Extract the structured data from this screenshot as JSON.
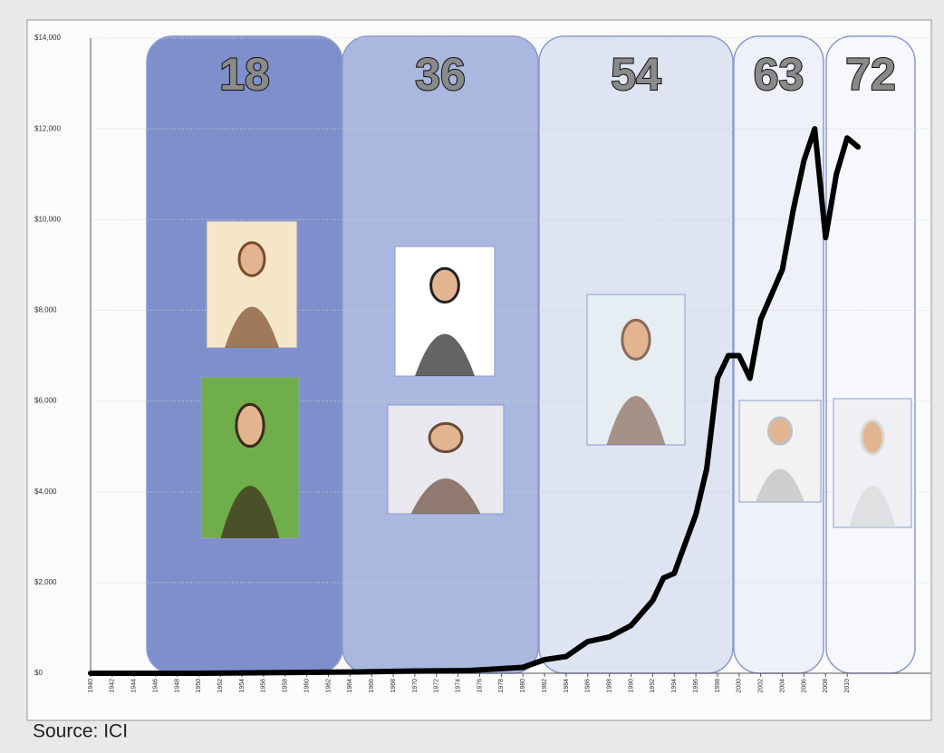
{
  "chart_data": {
    "type": "line",
    "x": [
      1940,
      1945,
      1950,
      1955,
      1960,
      1965,
      1970,
      1975,
      1980,
      1982,
      1984,
      1986,
      1988,
      1990,
      1992,
      1993,
      1994,
      1996,
      1997,
      1998,
      1999,
      2000,
      2001,
      2002,
      2004,
      2005,
      2006,
      2007,
      2008,
      2009,
      2010,
      2011
    ],
    "series": [
      {
        "color": "#000000",
        "values": [
          0,
          0,
          0,
          10,
          20,
          30,
          50,
          60,
          130,
          300,
          370,
          700,
          800,
          1050,
          1600,
          2100,
          2200,
          3500,
          4500,
          6500,
          7000,
          7000,
          6500,
          7800,
          8900,
          10200,
          11300,
          12000,
          9600,
          11000,
          11800,
          11600
        ]
      }
    ],
    "xlim": [
      1940,
      2017.7
    ],
    "xticks": [
      1940,
      1942,
      1944,
      1946,
      1948,
      1950,
      1952,
      1954,
      1956,
      1958,
      1960,
      1962,
      1964,
      1966,
      1968,
      1970,
      1972,
      1974,
      1976,
      1978,
      1980,
      1982,
      1984,
      1986,
      1988,
      1990,
      1992,
      1994,
      1996,
      1998,
      2000,
      2002,
      2004,
      2006,
      2008,
      2010
    ],
    "ylim": [
      0,
      14000
    ],
    "yticks": [
      {
        "value": 0,
        "label": "$0"
      },
      {
        "value": 2000,
        "label": "$2,000"
      },
      {
        "value": 4000,
        "label": "$4,000"
      },
      {
        "value": 6000,
        "label": "$6,000"
      },
      {
        "value": 8000,
        "label": "$8,000"
      },
      {
        "value": 10000,
        "label": "$10,000"
      },
      {
        "value": 12000,
        "label": "$12,000"
      },
      {
        "value": 14000,
        "label": "$14,000"
      }
    ],
    "grid": true,
    "annotations": [
      "18",
      "36",
      "54",
      "63",
      "72"
    ],
    "source": "Source: ICI"
  }
}
